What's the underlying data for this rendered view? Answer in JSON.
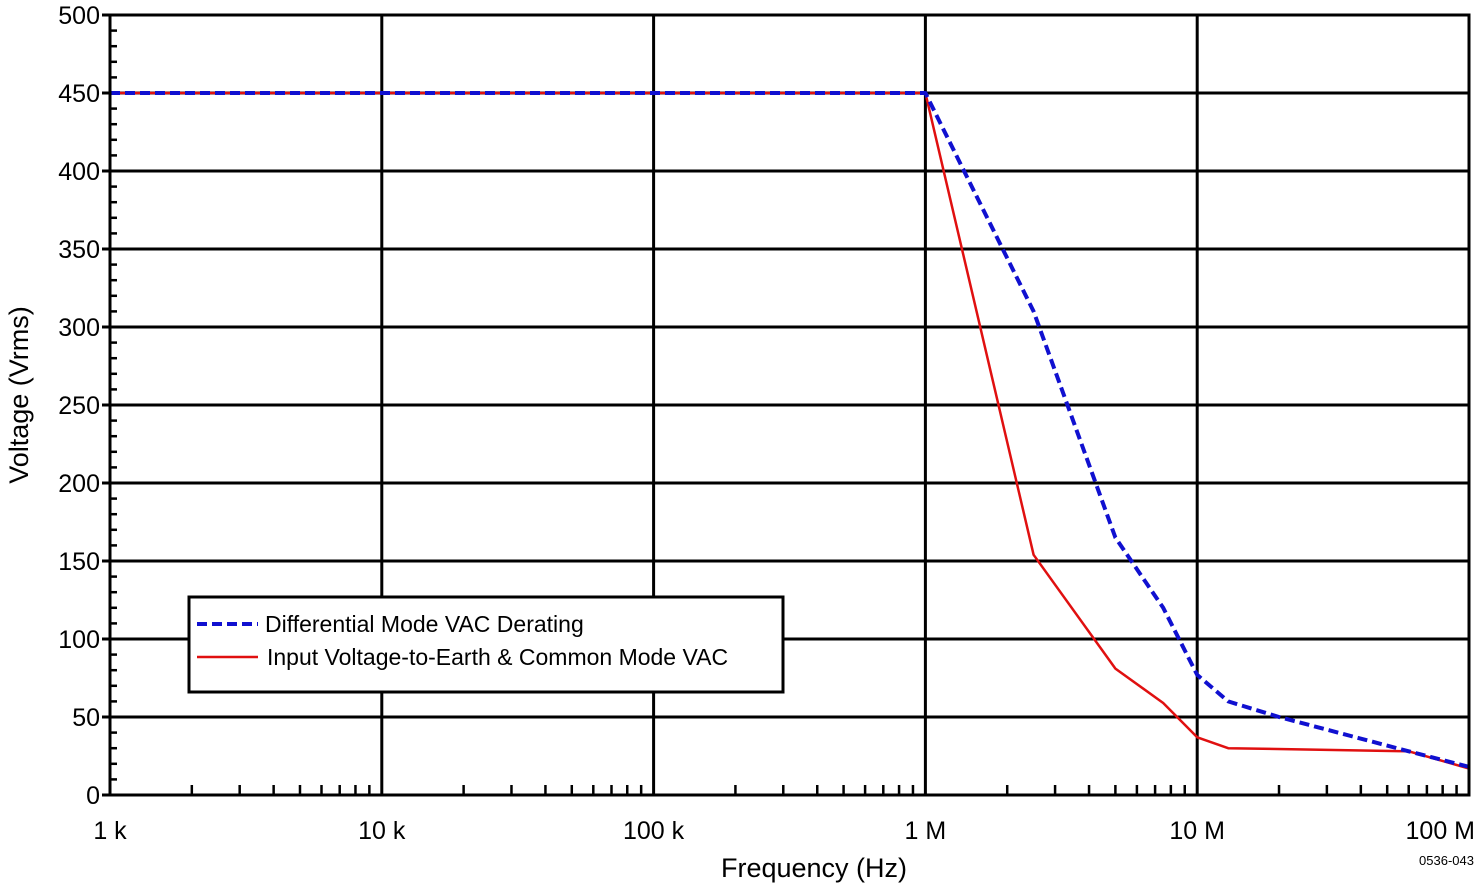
{
  "chart_data": {
    "type": "line",
    "xscale": "log",
    "xlabel": "Frequency (Hz)",
    "ylabel": "Voltage (Vrms)",
    "xlim": [
      1000,
      100000000
    ],
    "ylim": [
      0,
      500
    ],
    "grid": true,
    "x_tick_labels": [
      {
        "value": 1000,
        "label": "1 k"
      },
      {
        "value": 10000,
        "label": "10 k"
      },
      {
        "value": 100000,
        "label": "100 k"
      },
      {
        "value": 1000000,
        "label": "1 M"
      },
      {
        "value": 10000000,
        "label": "10 M"
      },
      {
        "value": 100000000,
        "label": "100 M"
      }
    ],
    "y_ticks": [
      0,
      50,
      100,
      150,
      200,
      250,
      300,
      350,
      400,
      450,
      500
    ],
    "legend_position": "bottom-left",
    "series": [
      {
        "name": "Differential Mode VAC Derating",
        "color": "#1010d0",
        "style": "dashed",
        "x": [
          1000,
          1000000,
          2500000,
          5000000,
          7500000,
          10000000,
          13000000,
          20000000,
          60000000,
          100000000
        ],
        "y": [
          450,
          450,
          310,
          165,
          120,
          77,
          60,
          50,
          28,
          18
        ]
      },
      {
        "name": "Input Voltage-to-Earth & Common Mode VAC",
        "color": "#e01010",
        "style": "solid",
        "x": [
          1000,
          1000000,
          2500000,
          5000000,
          7500000,
          10000000,
          13000000,
          60000000,
          100000000
        ],
        "y": [
          450,
          450,
          154,
          81,
          59,
          37,
          30,
          28,
          17
        ]
      }
    ],
    "figure_code": "0536-043"
  }
}
